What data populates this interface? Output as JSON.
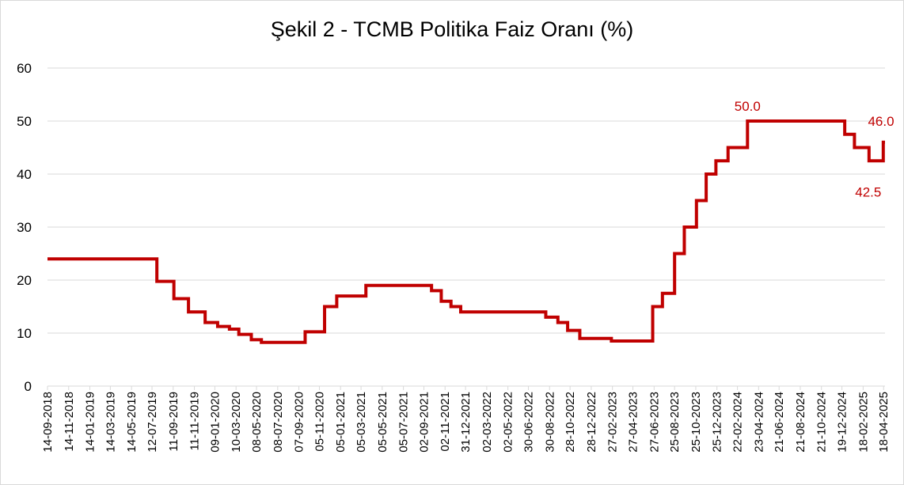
{
  "chart_data": {
    "type": "line",
    "title": "Şekil  2 - TCMB Politika Faiz Oranı (%)",
    "xlabel": "",
    "ylabel": "",
    "ylim": [
      0,
      60
    ],
    "yticks": [
      0,
      10,
      20,
      30,
      40,
      50,
      60
    ],
    "grid": true,
    "legend": "none",
    "line_color": "#c00000",
    "step": true,
    "x_tick_labels": [
      "14-09-2018",
      "14-11-2018",
      "14-01-2019",
      "14-03-2019",
      "14-05-2019",
      "12-07-2019",
      "11-09-2019",
      "11-11-2019",
      "09-01-2020",
      "10-03-2020",
      "08-05-2020",
      "08-07-2020",
      "07-09-2020",
      "05-11-2020",
      "05-01-2021",
      "05-03-2021",
      "05-05-2021",
      "05-07-2021",
      "02-09-2021",
      "02-11-2021",
      "31-12-2021",
      "02-03-2022",
      "02-05-2022",
      "30-06-2022",
      "30-08-2022",
      "28-10-2022",
      "28-12-2022",
      "27-02-2023",
      "27-04-2023",
      "27-06-2023",
      "25-08-2023",
      "25-10-2023",
      "25-12-2023",
      "22-02-2024",
      "23-04-2024",
      "21-06-2024",
      "21-08-2024",
      "21-10-2024",
      "19-12-2024",
      "18-02-2025",
      "18-04-2025"
    ],
    "x_range": [
      "14-09-2018",
      "22-04-2025"
    ],
    "series": [
      {
        "points": [
          [
            "14-09-2018",
            24.0
          ],
          [
            "26-07-2019",
            19.75
          ],
          [
            "13-09-2019",
            16.5
          ],
          [
            "25-10-2019",
            14.0
          ],
          [
            "12-12-2019",
            12.0
          ],
          [
            "17-01-2020",
            11.25
          ],
          [
            "20-02-2020",
            10.75
          ],
          [
            "18-03-2020",
            9.75
          ],
          [
            "23-04-2020",
            8.75
          ],
          [
            "22-05-2020",
            8.25
          ],
          [
            "25-09-2020",
            10.25
          ],
          [
            "20-11-2020",
            15.0
          ],
          [
            "25-12-2020",
            17.0
          ],
          [
            "19-03-2021",
            19.0
          ],
          [
            "24-09-2021",
            18.0
          ],
          [
            "22-10-2021",
            16.0
          ],
          [
            "19-11-2021",
            15.0
          ],
          [
            "17-12-2021",
            14.0
          ],
          [
            "19-08-2022",
            13.0
          ],
          [
            "23-09-2022",
            12.0
          ],
          [
            "21-10-2022",
            10.5
          ],
          [
            "25-11-2022",
            9.0
          ],
          [
            "24-02-2023",
            8.5
          ],
          [
            "23-06-2023",
            15.0
          ],
          [
            "21-07-2023",
            17.5
          ],
          [
            "25-08-2023",
            25.0
          ],
          [
            "22-09-2023",
            30.0
          ],
          [
            "27-10-2023",
            35.0
          ],
          [
            "24-11-2023",
            40.0
          ],
          [
            "22-12-2023",
            42.5
          ],
          [
            "26-01-2024",
            45.0
          ],
          [
            "22-03-2024",
            50.0
          ],
          [
            "27-12-2024",
            47.5
          ],
          [
            "24-01-2025",
            45.0
          ],
          [
            "07-03-2025",
            42.5
          ],
          [
            "17-04-2025",
            46.0
          ],
          [
            "22-04-2025",
            46.0
          ]
        ]
      }
    ],
    "data_labels": [
      {
        "text": "50.0",
        "x": "22-03-2024",
        "y": 50.0
      },
      {
        "text": "42.5",
        "x": "07-03-2025",
        "y": 42.5
      },
      {
        "text": "46.0",
        "x": "22-04-2025",
        "y": 46.0
      }
    ]
  }
}
